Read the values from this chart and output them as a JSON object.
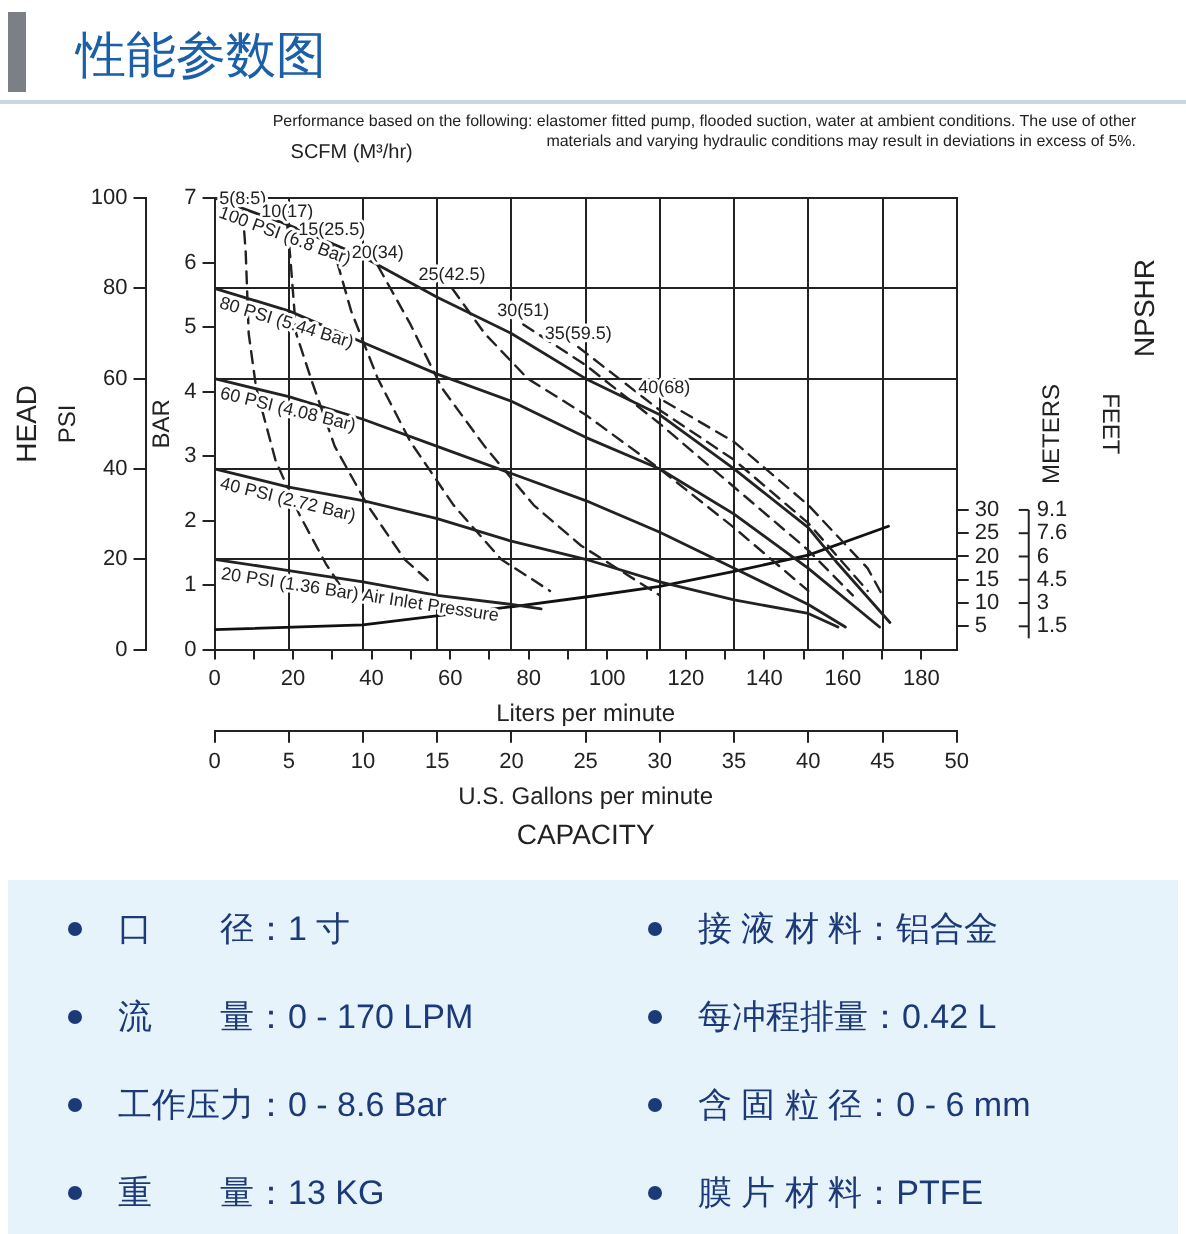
{
  "chart_data": {
    "type": "line",
    "title": "性能参数图",
    "xlabel": "U.S. Gallons per minute",
    "x2label": "Liters per minute",
    "ylabel": "PSI",
    "y2label": "BAR",
    "y3label": "FEET",
    "annotations": [
      "Performance based on the following: elastomer fitted pump, flooded suction, water at ambient conditions. The use of other materials and varying hydraulic conditions may result in deviations in excess of 5%.",
      "SCFM (M³/hr)",
      "HEAD",
      "NPSHR",
      "CAPACITY",
      "METERS",
      "1.5",
      "3",
      "4.5",
      "6",
      "7.6",
      "9.1",
      "口　　径：1 寸",
      "接 液 材 料：铝合金",
      "流　　量：0 - 170 LPM",
      "每冲程排量：0.42 L",
      "工作压力：0 - 8.6 Bar",
      "含 固 粒 径：0 - 6 mm",
      "重　　量：13 KG",
      "膜 片 材 料：PTFE"
    ],
    "xlim": [
      0,
      50
    ],
    "xticks": [
      0,
      5,
      10,
      15,
      20,
      25,
      30,
      35,
      40,
      45,
      50
    ],
    "x2lim": [
      0,
      189
    ],
    "x2ticks": [
      0,
      {
        "value": 10,
        "label": null
      },
      20,
      {
        "value": 30,
        "label": null
      },
      40,
      {
        "value": 50,
        "label": null
      },
      60,
      {
        "value": 70,
        "label": null
      },
      80,
      {
        "value": 90,
        "label": null
      },
      100,
      {
        "value": 110,
        "label": null
      },
      120,
      {
        "value": 130,
        "label": null
      },
      140,
      {
        "value": 150,
        "label": null
      },
      160,
      {
        "value": 170,
        "label": null
      },
      180
    ],
    "ylim": [
      0,
      100
    ],
    "yticks": [
      0,
      20,
      40,
      60,
      80,
      100
    ],
    "y2lim": [
      0,
      7
    ],
    "y2ticks": [
      0,
      1,
      2,
      3,
      4,
      5,
      6,
      7
    ],
    "y3lim": [
      0,
      97
    ],
    "y3ticks": [
      5,
      10,
      15,
      20,
      25,
      30
    ],
    "grid": true,
    "legend": false,
    "marker": "none",
    "series": [
      {
        "name": "100 PSI (6.8 Bar)",
        "color": "#222222",
        "line_style": "solid",
        "x": [
          0,
          5,
          10,
          15,
          20,
          25,
          30,
          35,
          40,
          42,
          45.5
        ],
        "values": [
          100,
          94,
          87,
          78,
          70,
          60,
          52,
          40,
          27,
          19,
          6
        ]
      },
      {
        "name": "80 PSI (5.44 Bar)",
        "color": "#222222",
        "line_style": "solid",
        "x": [
          0,
          5,
          10,
          15,
          20,
          25,
          30,
          35,
          40,
          44.8
        ],
        "values": [
          80,
          75,
          68,
          61,
          55,
          47,
          40,
          30,
          18,
          5
        ]
      },
      {
        "name": "60 PSI (4.08 Bar)",
        "color": "#222222",
        "line_style": "solid",
        "x": [
          0,
          5,
          10,
          15,
          20,
          25,
          30,
          35,
          40,
          42.5
        ],
        "values": [
          60,
          56,
          51,
          45,
          39,
          33,
          26,
          18,
          10,
          5
        ]
      },
      {
        "name": "40 PSI (2.72 Bar)",
        "color": "#222222",
        "line_style": "solid",
        "x": [
          0,
          5,
          10,
          15,
          20,
          25,
          30,
          35,
          40,
          42
        ],
        "values": [
          40,
          36,
          33,
          29,
          24,
          20,
          15,
          11,
          8,
          5
        ]
      },
      {
        "name": "20 PSI (1.36 Bar) Air Inlet Pressure",
        "color": "#222222",
        "line_style": "solid",
        "x": [
          0,
          5,
          10,
          15,
          20,
          22
        ],
        "values": [
          20,
          17.5,
          15,
          12,
          10,
          9
        ]
      },
      {
        "name": "5(8.5)",
        "color": "#222222",
        "line_style": "dashed",
        "x": [
          1.9,
          2.1,
          2.3,
          2.8,
          4.1,
          5.7,
          7.5,
          8.5
        ],
        "values": [
          97,
          88,
          70,
          58,
          42,
          30,
          19,
          14
        ]
      },
      {
        "name": "10(17)",
        "color": "#222222",
        "line_style": "dashed",
        "x": [
          4.9,
          5.1,
          5.5,
          6.6,
          8.1,
          10.3,
          12.8,
          14.5
        ],
        "values": [
          94,
          87,
          70,
          59,
          45,
          32,
          20,
          15
        ]
      },
      {
        "name": "15(25.5)",
        "color": "#222222",
        "line_style": "dashed",
        "x": [
          7.9,
          9.2,
          11,
          13.2,
          16.1,
          19.3,
          22.6
        ],
        "values": [
          90,
          75,
          60,
          46,
          32,
          20,
          13
        ]
      },
      {
        "name": "20(34)",
        "color": "#222222",
        "line_style": "dashed",
        "x": [
          11,
          13.2,
          15.3,
          18.2,
          21.5,
          24.7,
          30
        ],
        "values": [
          85,
          72,
          58,
          45,
          32,
          23,
          12
        ]
      },
      {
        "name": "25(42.5)",
        "color": "#222222",
        "line_style": "dashed",
        "x": [
          16,
          18.2,
          21.1,
          25,
          30,
          35,
          40
        ],
        "values": [
          80,
          70,
          60,
          52,
          40,
          27,
          13
        ]
      },
      {
        "name": "30(51)",
        "color": "#222222",
        "line_style": "dashed",
        "x": [
          20.8,
          25,
          30,
          35,
          40,
          43
        ],
        "values": [
          72,
          63,
          50,
          36,
          22,
          12
        ]
      },
      {
        "name": "35(59.5)",
        "color": "#222222",
        "line_style": "dashed",
        "x": [
          24.5,
          30,
          35,
          40,
          44
        ],
        "values": [
          67,
          53,
          42,
          28,
          13
        ]
      },
      {
        "name": "40(68)",
        "color": "#222222",
        "line_style": "dashed",
        "x": [
          30.3,
          35,
          40,
          44,
          45
        ],
        "values": [
          55,
          46,
          32,
          18,
          12
        ]
      },
      {
        "color": "#111111",
        "line_style": "solid",
        "axis": "y3",
        "x": [
          0,
          10,
          20,
          25,
          30,
          35,
          40,
          45.4
        ],
        "values": [
          4.3,
          5.3,
          9.2,
          11.3,
          13.6,
          16.8,
          20.3,
          26.5
        ]
      }
    ]
  }
}
